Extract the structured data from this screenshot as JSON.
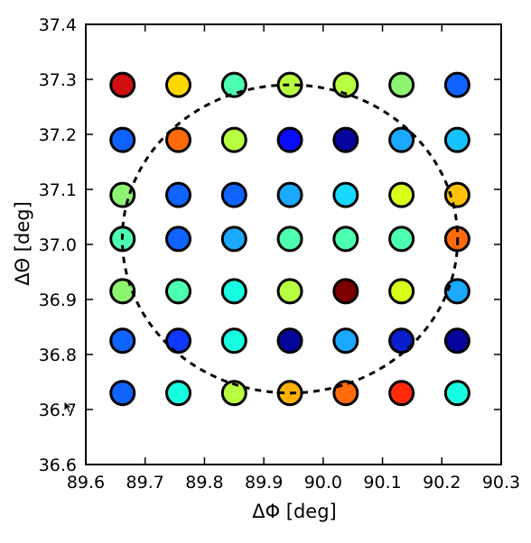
{
  "chart_data": {
    "type": "scatter",
    "xlabel": "ΔΦ [deg]",
    "ylabel": "ΔΘ [deg]",
    "xlim": [
      89.6,
      90.3
    ],
    "ylim": [
      36.6,
      37.4
    ],
    "x_ticks": [
      "89.6",
      "89.7",
      "89.8",
      "89.9",
      "90.0",
      "90.1",
      "90.2",
      "90.3"
    ],
    "y_ticks": [
      "36.6",
      "36.7",
      "36.8",
      "36.9",
      "37.0",
      "37.1",
      "37.2",
      "37.3",
      "37.4"
    ],
    "grid": false,
    "legend": "none",
    "x": [
      89.662,
      89.756,
      89.85,
      89.944,
      90.038,
      90.132,
      90.226
    ],
    "y": [
      37.29,
      37.19,
      37.09,
      37.01,
      36.915,
      36.825,
      36.73
    ],
    "point_colors": [
      [
        "#d10f0f",
        "#ffd700",
        "#4dffb0",
        "#b8ff40",
        "#b8ff40",
        "#8cf470",
        "#0f63ff"
      ],
      [
        "#0f63ff",
        "#ff6a0a",
        "#b8ff40",
        "#0a0aff",
        "#05059e",
        "#1aa9ff",
        "#17c3ff"
      ],
      [
        "#8cf470",
        "#0f63ff",
        "#0f63ff",
        "#1aa9ff",
        "#17d8ff",
        "#d8ff1a",
        "#ffc107"
      ],
      [
        "#4dffb0",
        "#0f63ff",
        "#1aa9ff",
        "#4dffb0",
        "#4dffb0",
        "#4dffb0",
        "#ff6a0a"
      ],
      [
        "#8cf470",
        "#4dffb0",
        "#17ffe0",
        "#b8ff40",
        "#7d0000",
        "#d8ff1a",
        "#1aa9ff"
      ],
      [
        "#0f63ff",
        "#0f38ff",
        "#17ffe0",
        "#05059e",
        "#1aa9ff",
        "#0a1ecc",
        "#05059e"
      ],
      [
        "#0f63ff",
        "#17ffe0",
        "#b8ff40",
        "#ffb000",
        "#ff6a0a",
        "#ff2a0a",
        "#17ffe0"
      ]
    ],
    "circle": {
      "center": [
        89.944,
        37.01
      ],
      "radius_x": 0.2825,
      "radius_y": 0.28,
      "style": "dashed"
    }
  }
}
